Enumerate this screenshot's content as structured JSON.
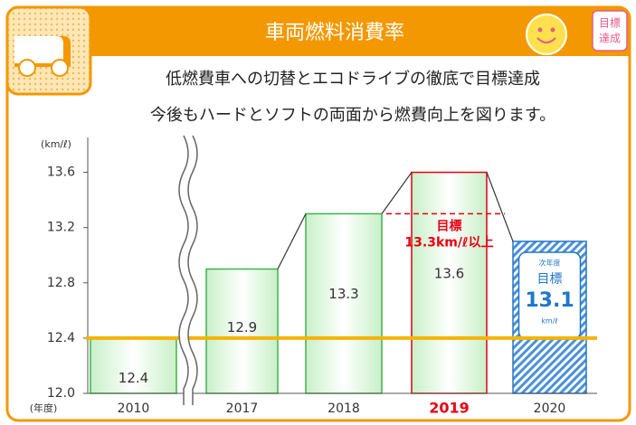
{
  "chart_data": {
    "type": "bar",
    "title": "車両燃料消費率",
    "badge": [
      "目標",
      "達成"
    ],
    "subtitle": [
      "低燃費車への切替とエコドライブの徹底で目標達成",
      "今後もハードとソフトの両面から燃費向上を図ります。"
    ],
    "y_axis_label": "(km/ℓ)",
    "x_axis_label": "(年度)",
    "categories": [
      "2010",
      "2017",
      "2018",
      "2019",
      "2020"
    ],
    "values": [
      12.4,
      12.9,
      13.3,
      13.6,
      13.1
    ],
    "color": "#3cb44b",
    "highlight_category": "2019",
    "highlight_color": "#e60012",
    "forecast_category": "2020",
    "forecast_color": "#1e78c8",
    "forecast_note": [
      "次年度",
      "目標",
      "km/ℓ"
    ],
    "target": {
      "value": 13.3,
      "label": [
        "目標",
        "13.3km/ℓ以上"
      ]
    },
    "baseline_value": 12.4,
    "baseline_color": "#f5b400",
    "ylim": [
      12.0,
      13.8
    ],
    "yticks": [
      {
        "value": 12.0,
        "label": "12.0"
      },
      12.4,
      12.8,
      13.2,
      13.6
    ]
  }
}
